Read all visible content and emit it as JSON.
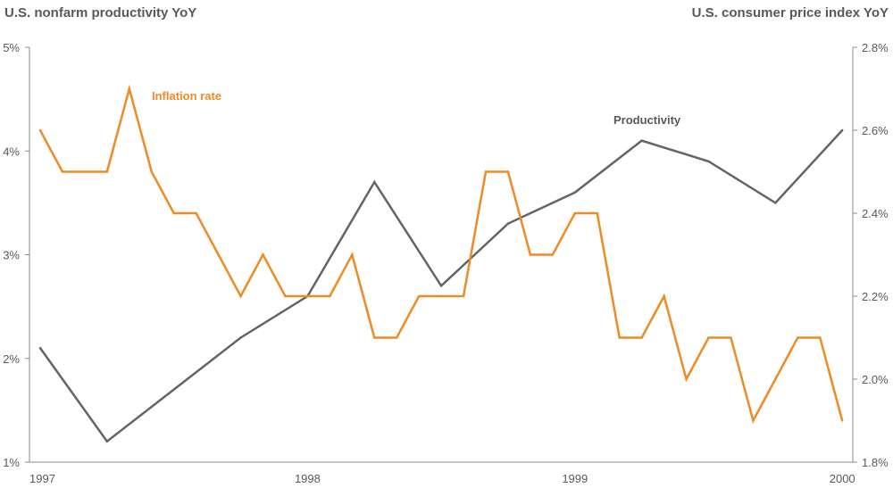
{
  "chart_data": {
    "type": "line",
    "left_axis_title": "U.S. nonfarm productivity YoY",
    "right_axis_title": "U.S. consumer price index YoY",
    "left_ylim": [
      1,
      5
    ],
    "right_ylim": [
      1.8,
      2.8
    ],
    "left_ticks": [
      "1%",
      "2%",
      "3%",
      "4%",
      "5%"
    ],
    "right_ticks": [
      "1.8%",
      "2.0%",
      "2.2%",
      "2.4%",
      "2.6%",
      "2.8%"
    ],
    "x_ticks": [
      "1997",
      "1998",
      "1999",
      "2000"
    ],
    "grid": false,
    "series": [
      {
        "name": "Productivity",
        "axis": "left",
        "color": "#636466",
        "frequency": "quarterly",
        "x": [
          "1997-Q1",
          "1997-Q2",
          "1997-Q3",
          "1997-Q4",
          "1998-Q1",
          "1998-Q2",
          "1998-Q3",
          "1998-Q4",
          "1999-Q1",
          "1999-Q2",
          "1999-Q3",
          "1999-Q4",
          "2000-Q1"
        ],
        "values": [
          2.1,
          1.2,
          1.7,
          2.2,
          2.6,
          3.7,
          2.7,
          3.3,
          3.6,
          4.1,
          3.9,
          3.5,
          4.2
        ]
      },
      {
        "name": "Inflation rate",
        "axis": "right",
        "color": "#f08a24",
        "frequency": "monthly",
        "x_start": "1997-01",
        "values": [
          2.6,
          2.5,
          2.5,
          2.5,
          2.7,
          2.5,
          2.4,
          2.4,
          2.3,
          2.2,
          2.3,
          2.2,
          2.2,
          2.2,
          2.3,
          2.1,
          2.1,
          2.2,
          2.2,
          2.2,
          2.5,
          2.5,
          2.3,
          2.3,
          2.4,
          2.4,
          2.1,
          2.1,
          2.2,
          2.0,
          2.1,
          2.1,
          1.9,
          2.0,
          2.1,
          2.1,
          1.9
        ]
      }
    ]
  }
}
